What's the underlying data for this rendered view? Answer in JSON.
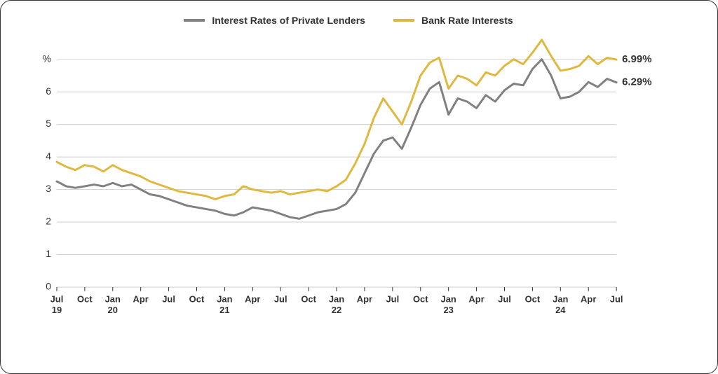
{
  "chart": {
    "type": "line",
    "background_color": "#ffffff",
    "border_color": "#333333",
    "border_radius": 16,
    "grid_color": "#cfcfcf",
    "label_fontsize": 14,
    "tick_fontsize": 13,
    "line_width": 3,
    "ylim": [
      0,
      7.6
    ],
    "y_ticks": [
      {
        "value": 0,
        "label": "0"
      },
      {
        "value": 1,
        "label": "1"
      },
      {
        "value": 2,
        "label": "2"
      },
      {
        "value": 3,
        "label": "3"
      },
      {
        "value": 4,
        "label": "4"
      },
      {
        "value": 5,
        "label": "5"
      },
      {
        "value": 6,
        "label": "6"
      },
      {
        "value": 7,
        "label": "7%"
      }
    ],
    "x_ticks": [
      {
        "idx": 0,
        "month": "Jul",
        "year": "19"
      },
      {
        "idx": 3,
        "month": "Oct",
        "year": ""
      },
      {
        "idx": 6,
        "month": "Jan",
        "year": "20"
      },
      {
        "idx": 9,
        "month": "Apr",
        "year": ""
      },
      {
        "idx": 12,
        "month": "Jul",
        "year": ""
      },
      {
        "idx": 15,
        "month": "Oct",
        "year": ""
      },
      {
        "idx": 18,
        "month": "Jan",
        "year": "21"
      },
      {
        "idx": 21,
        "month": "Apr",
        "year": ""
      },
      {
        "idx": 24,
        "month": "Jul",
        "year": ""
      },
      {
        "idx": 27,
        "month": "Oct",
        "year": ""
      },
      {
        "idx": 30,
        "month": "Jan",
        "year": "22"
      },
      {
        "idx": 33,
        "month": "Apr",
        "year": ""
      },
      {
        "idx": 36,
        "month": "Jul",
        "year": ""
      },
      {
        "idx": 39,
        "month": "Oct",
        "year": ""
      },
      {
        "idx": 42,
        "month": "Jan",
        "year": "23"
      },
      {
        "idx": 45,
        "month": "Apr",
        "year": ""
      },
      {
        "idx": 48,
        "month": "Jul",
        "year": ""
      },
      {
        "idx": 51,
        "month": "Oct",
        "year": ""
      },
      {
        "idx": 54,
        "month": "Jan",
        "year": "24"
      },
      {
        "idx": 57,
        "month": "Apr",
        "year": ""
      },
      {
        "idx": 60,
        "month": "Jul",
        "year": ""
      }
    ],
    "x_count": 61,
    "legend": {
      "series_a": "Interest Rates of Private Lenders",
      "series_b": "Bank Rate Interests"
    },
    "series": [
      {
        "name": "Interest Rates of Private Lenders",
        "color": "#808080",
        "end_label": "6.29%",
        "values": [
          3.25,
          3.1,
          3.05,
          3.1,
          3.15,
          3.1,
          3.2,
          3.1,
          3.15,
          3.0,
          2.85,
          2.8,
          2.7,
          2.6,
          2.5,
          2.45,
          2.4,
          2.35,
          2.25,
          2.2,
          2.3,
          2.45,
          2.4,
          2.35,
          2.25,
          2.15,
          2.1,
          2.2,
          2.3,
          2.35,
          2.4,
          2.55,
          2.9,
          3.5,
          4.1,
          4.5,
          4.6,
          4.25,
          4.9,
          5.6,
          6.1,
          6.3,
          5.3,
          5.8,
          5.7,
          5.5,
          5.9,
          5.7,
          6.05,
          6.25,
          6.2,
          6.7,
          7.0,
          6.5,
          5.8,
          5.85,
          6.0,
          6.3,
          6.15,
          6.4,
          6.29
        ]
      },
      {
        "name": "Bank Rate Interests",
        "color": "#e0b83e",
        "end_label": "6.99%",
        "values": [
          3.85,
          3.7,
          3.6,
          3.75,
          3.7,
          3.55,
          3.75,
          3.6,
          3.5,
          3.4,
          3.25,
          3.15,
          3.05,
          2.95,
          2.9,
          2.85,
          2.8,
          2.7,
          2.8,
          2.85,
          3.1,
          3.0,
          2.95,
          2.9,
          2.95,
          2.85,
          2.9,
          2.95,
          3.0,
          2.95,
          3.1,
          3.3,
          3.8,
          4.4,
          5.2,
          5.8,
          5.4,
          5.0,
          5.7,
          6.5,
          6.9,
          7.05,
          6.1,
          6.5,
          6.4,
          6.2,
          6.6,
          6.5,
          6.8,
          7.0,
          6.85,
          7.2,
          7.6,
          7.1,
          6.65,
          6.7,
          6.8,
          7.1,
          6.85,
          7.05,
          6.99
        ]
      }
    ]
  }
}
